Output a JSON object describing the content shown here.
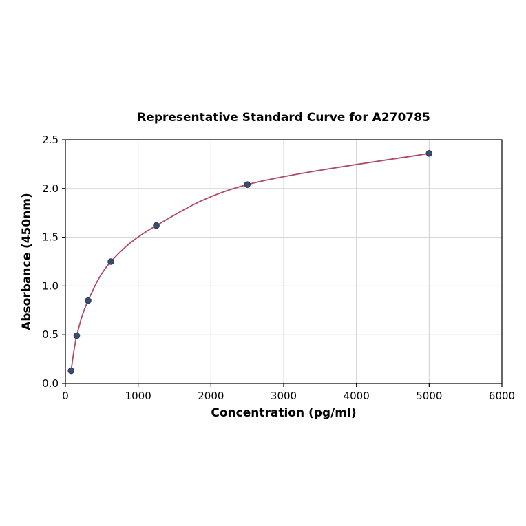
{
  "chart_data": {
    "type": "scatter",
    "title": "Representative Standard Curve for A270785",
    "xlabel": "Concentration (pg/ml)",
    "ylabel": "Absorbance (450nm)",
    "x": [
      78,
      156,
      312,
      625,
      1250,
      2500,
      5000
    ],
    "y": [
      0.13,
      0.49,
      0.85,
      1.25,
      1.62,
      2.04,
      2.36
    ],
    "fit_curve": "smooth monotonic saturation fit through all points",
    "xlim": [
      0,
      6000
    ],
    "ylim": [
      0,
      2.5
    ],
    "xticks": [
      0,
      1000,
      2000,
      3000,
      4000,
      5000,
      6000
    ],
    "xticklabels": [
      "0",
      "1000",
      "2000",
      "3000",
      "4000",
      "5000",
      "6000"
    ],
    "yticks": [
      0,
      0.5,
      1.0,
      1.5,
      2.0,
      2.5
    ],
    "yticklabels": [
      "0.0",
      "0.5",
      "1.0",
      "1.5",
      "2.0",
      "2.5"
    ],
    "grid": true,
    "legend": "none",
    "colors": {
      "curve": "#b2486b",
      "marker": "#3b4c6e",
      "marker_edge": "#2c3a55",
      "grid": "#d0d0d0",
      "axis": "#000000",
      "background": "#ffffff"
    }
  }
}
